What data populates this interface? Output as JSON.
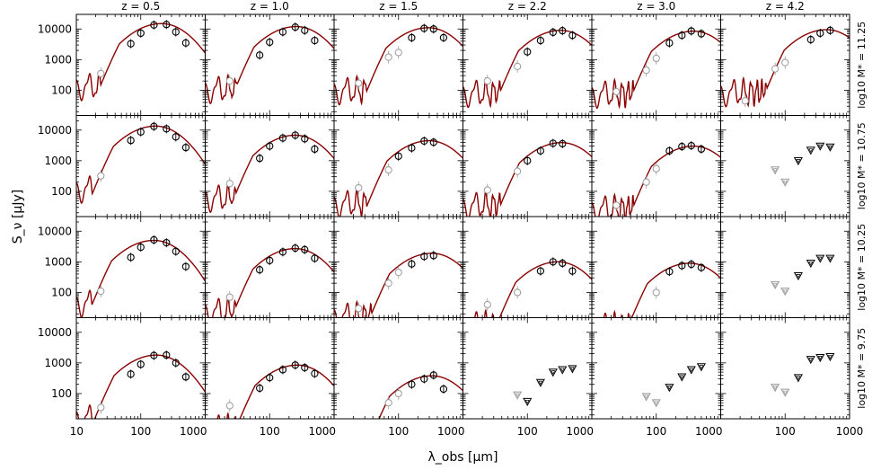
{
  "chart_data": {
    "type": "scatter",
    "layout": "small-multiples grid (4 rows x 6 columns) of spectral energy distributions; log-log axes shared across panels",
    "xlabel": "λ_obs [μm]",
    "ylabel": "S_ν [μJy]",
    "xscale": "log",
    "yscale": "log",
    "xlim": [
      10,
      1000
    ],
    "ylim": [
      15,
      30000
    ],
    "x_ticks": [
      10,
      100,
      1000
    ],
    "x_tick_labels_first_col": [
      "10",
      "100",
      "1000"
    ],
    "x_tick_labels_other_cols": [
      "100",
      "1000"
    ],
    "y_ticks": [
      100,
      1000,
      10000
    ],
    "y_tick_labels": [
      "100",
      "1000",
      "10000"
    ],
    "grid": false,
    "model_line_color": "#8b0000",
    "detection_marker_color": "#000000",
    "faint_marker_color": "#999999",
    "columns": [
      "z = 0.5",
      "z = 1.0",
      "z = 1.5",
      "z = 2.2",
      "z = 3.0",
      "z = 4.2"
    ],
    "rows": [
      "log10 M* = 11.25",
      "log10 M* = 10.75",
      "log10 M* = 10.25",
      "log10 M* = 9.75"
    ],
    "panels": [
      {
        "row": 0,
        "col": 0,
        "model_peak_lambda": 210,
        "model_peak_flux": 15000,
        "detections": [
          [
            70,
            3300
          ],
          [
            100,
            7300
          ],
          [
            160,
            13500
          ],
          [
            250,
            14000
          ],
          [
            350,
            8000
          ],
          [
            500,
            3500
          ]
        ],
        "faint": [
          [
            24,
            350
          ]
        ],
        "upper_limits": []
      },
      {
        "row": 0,
        "col": 1,
        "model_peak_lambda": 260,
        "model_peak_flux": 12000,
        "detections": [
          [
            70,
            1400
          ],
          [
            100,
            3700
          ],
          [
            160,
            8000
          ],
          [
            250,
            11500
          ],
          [
            350,
            9000
          ],
          [
            500,
            4200
          ]
        ],
        "faint": [
          [
            24,
            200
          ]
        ],
        "upper_limits": []
      },
      {
        "row": 0,
        "col": 2,
        "model_peak_lambda": 290,
        "model_peak_flux": 11000,
        "detections": [
          [
            160,
            5200
          ],
          [
            250,
            10500
          ],
          [
            350,
            10000
          ],
          [
            500,
            5200
          ]
        ],
        "faint": [
          [
            24,
            170
          ],
          [
            70,
            1200
          ],
          [
            100,
            1700
          ]
        ],
        "upper_limits": []
      },
      {
        "row": 0,
        "col": 3,
        "model_peak_lambda": 330,
        "model_peak_flux": 9000,
        "detections": [
          [
            100,
            1800
          ],
          [
            160,
            4200
          ],
          [
            250,
            7800
          ],
          [
            350,
            8800
          ],
          [
            500,
            6200
          ]
        ],
        "faint": [
          [
            24,
            200
          ],
          [
            70,
            600
          ]
        ],
        "upper_limits": []
      },
      {
        "row": 0,
        "col": 4,
        "model_peak_lambda": 380,
        "model_peak_flux": 8500,
        "detections": [
          [
            160,
            3500
          ],
          [
            250,
            6200
          ],
          [
            350,
            8600
          ],
          [
            500,
            7000
          ]
        ],
        "faint": [
          [
            24,
            90
          ],
          [
            70,
            450
          ],
          [
            100,
            1100
          ]
        ],
        "upper_limits": []
      },
      {
        "row": 0,
        "col": 5,
        "model_peak_lambda": 440,
        "model_peak_flux": 9500,
        "detections": [
          [
            250,
            4500
          ],
          [
            350,
            7300
          ],
          [
            500,
            9000
          ]
        ],
        "faint": [
          [
            24,
            45
          ],
          [
            70,
            500
          ],
          [
            100,
            800
          ]
        ],
        "upper_limits": []
      },
      {
        "row": 1,
        "col": 0,
        "model_peak_lambda": 170,
        "model_peak_flux": 13500,
        "detections": [
          [
            70,
            4600
          ],
          [
            100,
            8700
          ],
          [
            160,
            13200
          ],
          [
            250,
            11000
          ],
          [
            350,
            6000
          ],
          [
            500,
            2700
          ]
        ],
        "faint": [
          [
            24,
            320
          ]
        ],
        "upper_limits": []
      },
      {
        "row": 1,
        "col": 1,
        "model_peak_lambda": 250,
        "model_peak_flux": 6800,
        "detections": [
          [
            70,
            1200
          ],
          [
            100,
            3000
          ],
          [
            160,
            5500
          ],
          [
            250,
            6800
          ],
          [
            350,
            5200
          ],
          [
            500,
            2400
          ]
        ],
        "faint": [
          [
            24,
            180
          ]
        ],
        "upper_limits": []
      },
      {
        "row": 1,
        "col": 2,
        "model_peak_lambda": 300,
        "model_peak_flux": 4500,
        "detections": [
          [
            100,
            1400
          ],
          [
            160,
            2600
          ],
          [
            250,
            4400
          ],
          [
            350,
            4000
          ]
        ],
        "faint": [
          [
            24,
            130
          ],
          [
            70,
            500
          ]
        ],
        "upper_limits": []
      },
      {
        "row": 1,
        "col": 3,
        "model_peak_lambda": 340,
        "model_peak_flux": 3900,
        "detections": [
          [
            100,
            1000
          ],
          [
            160,
            2100
          ],
          [
            250,
            3700
          ],
          [
            350,
            3600
          ]
        ],
        "faint": [
          [
            24,
            110
          ],
          [
            70,
            450
          ]
        ],
        "upper_limits": []
      },
      {
        "row": 1,
        "col": 4,
        "model_peak_lambda": 380,
        "model_peak_flux": 3000,
        "detections": [
          [
            160,
            2100
          ],
          [
            250,
            2900
          ],
          [
            350,
            3100
          ],
          [
            500,
            2400
          ]
        ],
        "faint": [
          [
            24,
            35
          ],
          [
            70,
            200
          ],
          [
            100,
            550
          ]
        ],
        "upper_limits": []
      },
      {
        "row": 1,
        "col": 5,
        "model_peak_lambda": null,
        "model_peak_flux": null,
        "detections": [],
        "faint": [],
        "upper_limits": [
          [
            70,
            500,
            "faint"
          ],
          [
            100,
            200,
            "faint"
          ],
          [
            160,
            1000,
            "dark"
          ],
          [
            250,
            2200,
            "dark"
          ],
          [
            350,
            3000,
            "dark"
          ],
          [
            500,
            2800,
            "dark"
          ]
        ]
      },
      {
        "row": 2,
        "col": 0,
        "model_peak_lambda": 160,
        "model_peak_flux": 5000,
        "detections": [
          [
            70,
            1400
          ],
          [
            100,
            3000
          ],
          [
            160,
            5200
          ],
          [
            250,
            4200
          ],
          [
            350,
            2200
          ],
          [
            500,
            700
          ]
        ],
        "faint": [
          [
            24,
            110
          ]
        ],
        "upper_limits": []
      },
      {
        "row": 2,
        "col": 1,
        "model_peak_lambda": 250,
        "model_peak_flux": 2700,
        "detections": [
          [
            70,
            550
          ],
          [
            100,
            1100
          ],
          [
            160,
            2100
          ],
          [
            250,
            2800
          ],
          [
            350,
            2500
          ],
          [
            500,
            1300
          ]
        ],
        "faint": [
          [
            24,
            70
          ]
        ],
        "upper_limits": []
      },
      {
        "row": 2,
        "col": 2,
        "model_peak_lambda": 330,
        "model_peak_flux": 1900,
        "detections": [
          [
            160,
            850
          ],
          [
            250,
            1500
          ],
          [
            350,
            1600
          ]
        ],
        "faint": [
          [
            24,
            30
          ],
          [
            70,
            200
          ],
          [
            100,
            450
          ]
        ],
        "upper_limits": []
      },
      {
        "row": 2,
        "col": 3,
        "model_peak_lambda": 300,
        "model_peak_flux": 1000,
        "detections": [
          [
            160,
            500
          ],
          [
            250,
            1000
          ],
          [
            350,
            900
          ],
          [
            500,
            500
          ]
        ],
        "faint": [
          [
            24,
            40
          ],
          [
            70,
            100
          ]
        ],
        "upper_limits": []
      },
      {
        "row": 2,
        "col": 4,
        "model_peak_lambda": 330,
        "model_peak_flux": 900,
        "detections": [
          [
            160,
            480
          ],
          [
            250,
            750
          ],
          [
            350,
            830
          ],
          [
            500,
            650
          ]
        ],
        "faint": [
          [
            100,
            100
          ]
        ],
        "upper_limits": []
      },
      {
        "row": 2,
        "col": 5,
        "model_peak_lambda": null,
        "model_peak_flux": null,
        "detections": [],
        "faint": [],
        "upper_limits": [
          [
            70,
            180,
            "faint"
          ],
          [
            100,
            110,
            "faint"
          ],
          [
            160,
            350,
            "dark"
          ],
          [
            250,
            900,
            "dark"
          ],
          [
            350,
            1300,
            "dark"
          ],
          [
            500,
            1300,
            "dark"
          ]
        ]
      },
      {
        "row": 3,
        "col": 0,
        "model_peak_lambda": 175,
        "model_peak_flux": 1800,
        "detections": [
          [
            70,
            430
          ],
          [
            100,
            900
          ],
          [
            160,
            1750
          ],
          [
            250,
            1800
          ],
          [
            350,
            1000
          ],
          [
            500,
            350
          ]
        ],
        "faint": [
          [
            24,
            35
          ]
        ],
        "upper_limits": []
      },
      {
        "row": 3,
        "col": 1,
        "model_peak_lambda": 270,
        "model_peak_flux": 850,
        "detections": [
          [
            70,
            150
          ],
          [
            100,
            330
          ],
          [
            160,
            600
          ],
          [
            250,
            850
          ],
          [
            350,
            700
          ],
          [
            500,
            450
          ]
        ],
        "faint": [
          [
            24,
            40
          ]
        ],
        "upper_limits": []
      },
      {
        "row": 3,
        "col": 2,
        "model_peak_lambda": 330,
        "model_peak_flux": 380,
        "detections": [
          [
            160,
            200
          ],
          [
            250,
            300
          ],
          [
            350,
            400
          ],
          [
            500,
            140
          ]
        ],
        "faint": [
          [
            70,
            50
          ],
          [
            100,
            100
          ]
        ],
        "upper_limits": []
      },
      {
        "row": 3,
        "col": 3,
        "model_peak_lambda": null,
        "model_peak_flux": null,
        "detections": [],
        "faint": [],
        "upper_limits": [
          [
            70,
            90,
            "faint"
          ],
          [
            100,
            55,
            "dark"
          ],
          [
            160,
            230,
            "dark"
          ],
          [
            250,
            500,
            "dark"
          ],
          [
            350,
            600,
            "dark"
          ],
          [
            500,
            650,
            "dark"
          ]
        ]
      },
      {
        "row": 3,
        "col": 4,
        "model_peak_lambda": null,
        "model_peak_flux": null,
        "detections": [],
        "faint": [],
        "upper_limits": [
          [
            70,
            80,
            "faint"
          ],
          [
            100,
            50,
            "faint"
          ],
          [
            160,
            160,
            "dark"
          ],
          [
            250,
            350,
            "dark"
          ],
          [
            350,
            600,
            "dark"
          ],
          [
            500,
            750,
            "dark"
          ]
        ]
      },
      {
        "row": 3,
        "col": 5,
        "model_peak_lambda": null,
        "model_peak_flux": null,
        "detections": [],
        "faint": [],
        "upper_limits": [
          [
            70,
            160,
            "faint"
          ],
          [
            100,
            110,
            "faint"
          ],
          [
            160,
            330,
            "dark"
          ],
          [
            250,
            1300,
            "dark"
          ],
          [
            350,
            1500,
            "dark"
          ],
          [
            500,
            1600,
            "dark"
          ]
        ]
      }
    ]
  }
}
